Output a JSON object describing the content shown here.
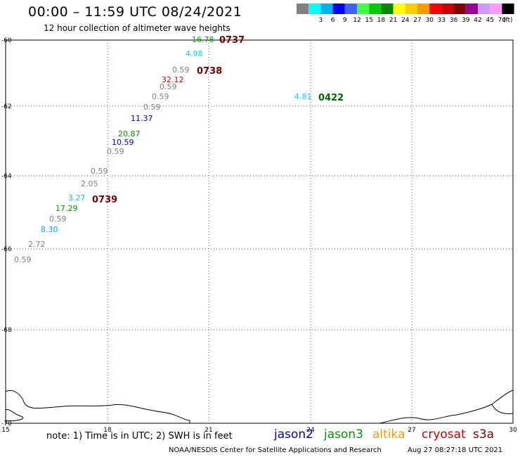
{
  "title": "00:00 – 11:59 UTC 08/24/2021",
  "subtitle": "12 hour collection of altimeter wave heights",
  "legend": {
    "unit": "(ft)",
    "swatches": [
      {
        "color": "#808080",
        "label": ""
      },
      {
        "color": "#00ffff",
        "label": "3"
      },
      {
        "color": "#00b0f0",
        "label": "6"
      },
      {
        "color": "#0000ff",
        "label": "9"
      },
      {
        "color": "#4060ff",
        "label": "12"
      },
      {
        "color": "#40ff40",
        "label": "15"
      },
      {
        "color": "#00cc00",
        "label": "18"
      },
      {
        "color": "#008800",
        "label": "21"
      },
      {
        "color": "#ffff00",
        "label": "24"
      },
      {
        "color": "#ffcc00",
        "label": "27"
      },
      {
        "color": "#ff9900",
        "label": "30"
      },
      {
        "color": "#ff0000",
        "label": "33"
      },
      {
        "color": "#cc0000",
        "label": "36"
      },
      {
        "color": "#800000",
        "label": "39"
      },
      {
        "color": "#990099",
        "label": "42"
      },
      {
        "color": "#cc99ff",
        "label": "45"
      },
      {
        "color": "#ff99ff",
        "label": "70"
      },
      {
        "color": "#000000",
        "label": ""
      }
    ]
  },
  "axes": {
    "lon_ticks": [
      "15",
      "18",
      "21",
      "24",
      "27",
      "30"
    ],
    "lat_ticks": [
      "-60",
      "-62",
      "-64",
      "-66",
      "-68",
      "-70"
    ]
  },
  "measurements": [
    {
      "value": "16.78",
      "color": "#00aa00"
    },
    {
      "value": "4.98",
      "color": "#00dddd"
    },
    {
      "value": "0.59",
      "color": "#808080"
    },
    {
      "value": "32.12",
      "color": "#cc0000"
    },
    {
      "value": "0.59",
      "color": "#808080"
    },
    {
      "value": "0.59",
      "color": "#808080"
    },
    {
      "value": "0.59",
      "color": "#808080"
    },
    {
      "value": "11.37",
      "color": "#0000cc"
    },
    {
      "value": "20.87",
      "color": "#009900"
    },
    {
      "value": "10.59",
      "color": "#0000cc"
    },
    {
      "value": "0.59",
      "color": "#808080"
    },
    {
      "value": "0.59",
      "color": "#808080"
    },
    {
      "value": "2.05",
      "color": "#808080"
    },
    {
      "value": "3.27",
      "color": "#00cccc"
    },
    {
      "value": "17.29",
      "color": "#009900"
    },
    {
      "value": "0.59",
      "color": "#808080"
    },
    {
      "value": "8.30",
      "color": "#00aaee"
    },
    {
      "value": "2.72",
      "color": "#808080"
    },
    {
      "value": "0.59",
      "color": "#808080"
    },
    {
      "value": "4.81",
      "color": "#00dddd"
    }
  ],
  "pass_times": [
    {
      "value": "0737",
      "color": "#800000"
    },
    {
      "value": "0738",
      "color": "#800000"
    },
    {
      "value": "0739",
      "color": "#800000"
    },
    {
      "value": "0422",
      "color": "#006600"
    }
  ],
  "footer": {
    "note": "note:  1) Time is in UTC;  2) SWH is in feet",
    "satellites": [
      {
        "name": "jason2",
        "color": "#0000cc"
      },
      {
        "name": "jason3",
        "color": "#009900"
      },
      {
        "name": "altika",
        "color": "#ff9900"
      },
      {
        "name": "cryosat",
        "color": "#cc0000"
      },
      {
        "name": "s3a",
        "color": "#800000"
      }
    ],
    "credit": "NOAA/NESDIS Center for Satellite Applications and Research",
    "generated": "Aug 27 08:27:18 UTC 2021"
  }
}
